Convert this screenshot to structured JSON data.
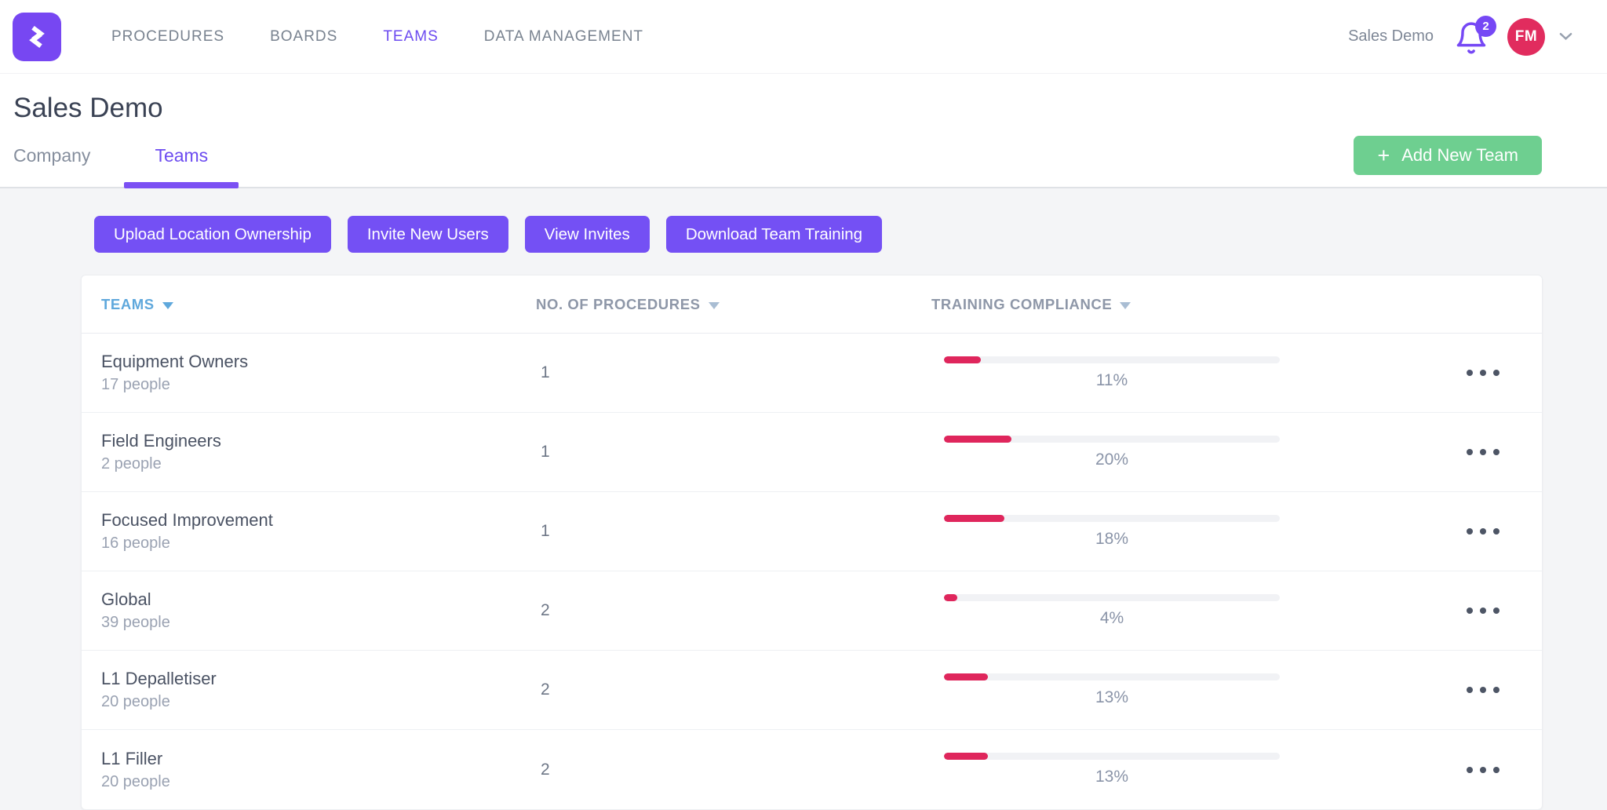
{
  "topbar": {
    "logo": {
      "icon": "swipeguide-logo"
    },
    "nav_items": [
      {
        "label": "PROCEDURES",
        "active": false
      },
      {
        "label": "BOARDS",
        "active": false
      },
      {
        "label": "TEAMS",
        "active": true
      },
      {
        "label": "DATA MANAGEMENT",
        "active": false
      }
    ],
    "workspace_label": "Sales Demo",
    "notifications": {
      "icon": "bell-icon",
      "badge_count": "2"
    },
    "user": {
      "avatar_initials": "FM",
      "menu_icon": "chevron-down-icon"
    }
  },
  "page": {
    "title": "Sales Demo",
    "tabs": [
      {
        "label": "Company",
        "active": false
      },
      {
        "label": "Teams",
        "active": true
      }
    ],
    "add_team_button": {
      "icon": "+",
      "label": "Add New Team"
    }
  },
  "actions": {
    "buttons": [
      "Upload Location Ownership",
      "Invite New Users",
      "View Invites",
      "Download Team Training"
    ]
  },
  "table": {
    "columns": [
      {
        "label": "TEAMS",
        "sort_icon": "sort-triangle-down"
      },
      {
        "label": "NO. OF PROCEDURES",
        "sort_icon": "sort-triangle-down"
      },
      {
        "label": "TRAINING COMPLIANCE",
        "sort_icon": "sort-triangle-down"
      }
    ],
    "row_menu_icon": "ellipsis-icon",
    "rows": [
      {
        "name": "Equipment Owners",
        "people": "17 people",
        "procedures": "1",
        "compliance_percent": 11,
        "compliance_label": "11%"
      },
      {
        "name": "Field Engineers",
        "people": "2 people",
        "procedures": "1",
        "compliance_percent": 20,
        "compliance_label": "20%"
      },
      {
        "name": "Focused Improvement",
        "people": "16 people",
        "procedures": "1",
        "compliance_percent": 18,
        "compliance_label": "18%"
      },
      {
        "name": "Global",
        "people": "39 people",
        "procedures": "2",
        "compliance_percent": 4,
        "compliance_label": "4%"
      },
      {
        "name": "L1 Depalletiser",
        "people": "20 people",
        "procedures": "2",
        "compliance_percent": 13,
        "compliance_label": "13%"
      },
      {
        "name": "L1 Filler",
        "people": "20 people",
        "procedures": "2",
        "compliance_percent": 13,
        "compliance_label": "13%"
      }
    ]
  },
  "colors": {
    "accent_purple": "#7450F4",
    "nav_active_purple": "#6C4BF0",
    "logo_purple": "#7747F2",
    "green_button": "#6ECF90",
    "avatar_crimson": "#E12C5E",
    "progress_fill": "#DF265C",
    "teams_header_blue": "#5FA8DC"
  }
}
